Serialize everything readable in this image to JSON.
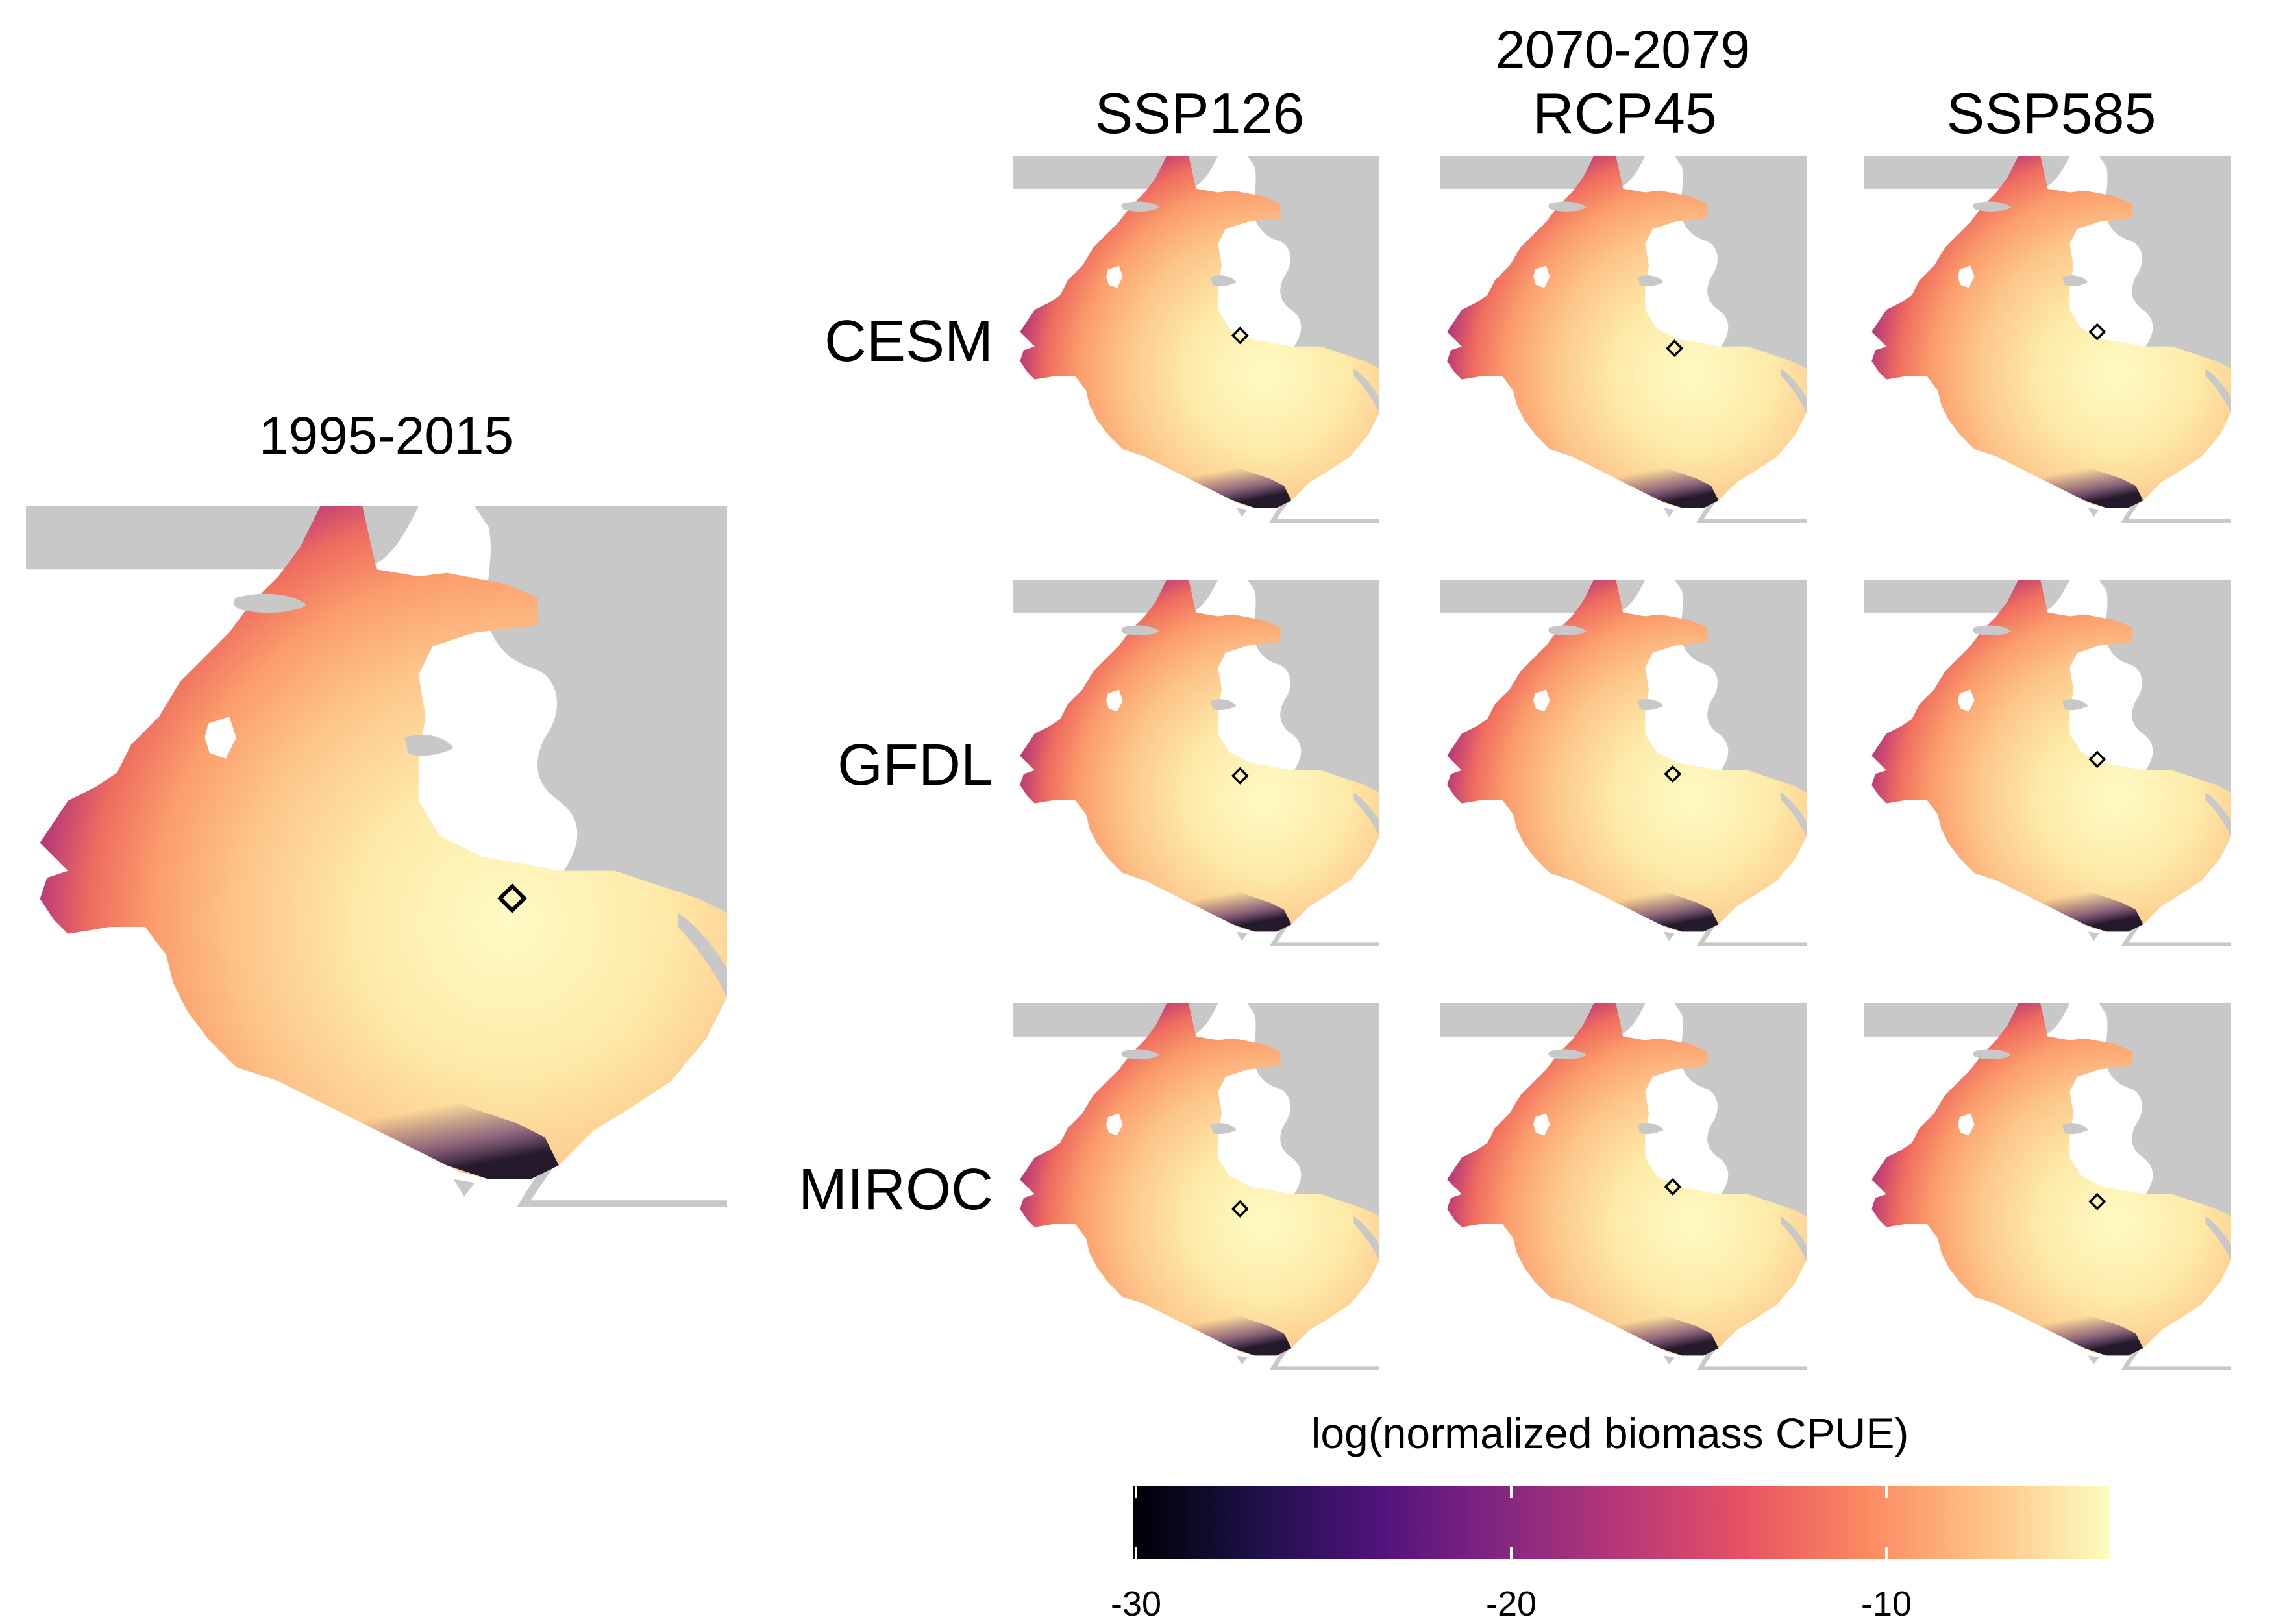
{
  "figure": {
    "baseline_title": "1995-2015",
    "future_period": "2070-2079",
    "scenarios": [
      "SSP126",
      "RCP45",
      "SSP585"
    ],
    "models": [
      "CESM",
      "GFDL",
      "MIROC"
    ]
  },
  "legend": {
    "title": "log(normalized biomass CPUE)",
    "ticks": [
      "-30",
      "-20",
      "-10"
    ],
    "range": [
      -31,
      -5
    ],
    "palette": [
      "#000004",
      "#1d1147",
      "#51127c",
      "#832681",
      "#b73779",
      "#e75263",
      "#fc8961",
      "#fec488",
      "#fcfdbf"
    ]
  },
  "colors": {
    "land": "#c8c8c8",
    "station_marker": "#000000"
  },
  "map_markers": {
    "baseline": "station-diamond",
    "panels": [
      [
        "station-diamond",
        "station-diamond",
        "station-diamond"
      ],
      [
        "station-diamond",
        "station-diamond",
        "station-diamond"
      ],
      [
        "station-diamond",
        "station-diamond",
        "station-diamond"
      ]
    ]
  }
}
